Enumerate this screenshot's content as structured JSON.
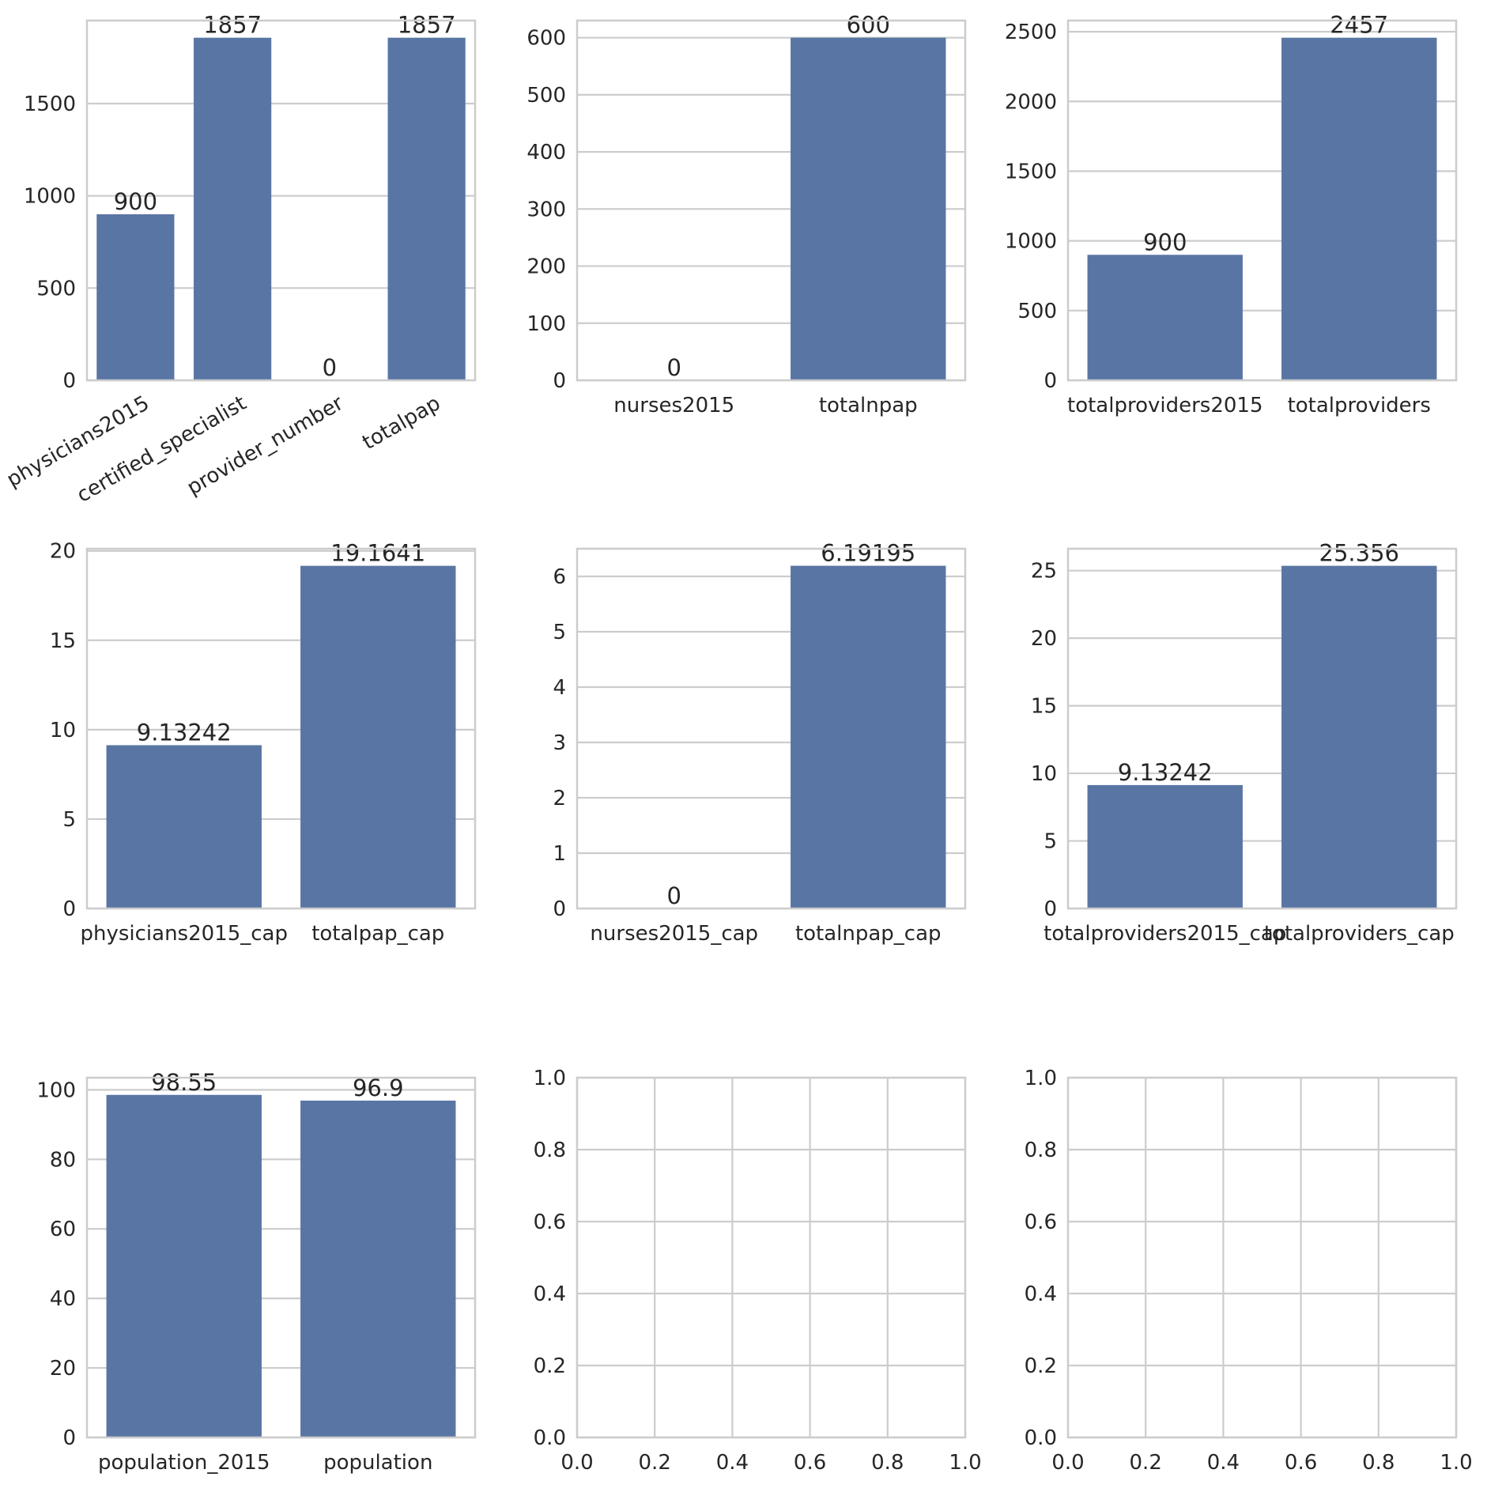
{
  "colors": {
    "bar": "#5975a4",
    "grid": "#cccccc",
    "text": "#262626"
  },
  "chart_data": [
    {
      "type": "bar",
      "categories": [
        "physicians2015",
        "certified_specialist",
        "provider_number",
        "totalpap"
      ],
      "values": [
        900,
        1857,
        0,
        1857
      ],
      "value_labels": [
        "900",
        "1857",
        "0",
        "1857"
      ],
      "ylim": [
        0,
        1950
      ],
      "yticks": [
        0,
        500,
        1000,
        1500
      ],
      "ytick_labels": [
        "0",
        "500",
        "1000",
        "1500"
      ],
      "xtick_rotation": 30,
      "grid": true
    },
    {
      "type": "bar",
      "categories": [
        "nurses2015",
        "totalnpap"
      ],
      "values": [
        0,
        600
      ],
      "value_labels": [
        "0",
        "600"
      ],
      "ylim": [
        0,
        630
      ],
      "yticks": [
        0,
        100,
        200,
        300,
        400,
        500,
        600
      ],
      "ytick_labels": [
        "0",
        "100",
        "200",
        "300",
        "400",
        "500",
        "600"
      ],
      "grid": true
    },
    {
      "type": "bar",
      "categories": [
        "totalproviders2015",
        "totalproviders"
      ],
      "values": [
        900,
        2457
      ],
      "value_labels": [
        "900",
        "2457"
      ],
      "ylim": [
        0,
        2580
      ],
      "yticks": [
        0,
        500,
        1000,
        1500,
        2000,
        2500
      ],
      "ytick_labels": [
        "0",
        "500",
        "1000",
        "1500",
        "2000",
        "2500"
      ],
      "grid": true
    },
    {
      "type": "bar",
      "categories": [
        "physicians2015_cap",
        "totalpap_cap"
      ],
      "values": [
        9.13242,
        19.1641
      ],
      "value_labels": [
        "9.13242",
        "19.1641"
      ],
      "ylim": [
        0,
        20.12
      ],
      "yticks": [
        0,
        5,
        10,
        15,
        20
      ],
      "ytick_labels": [
        "0",
        "5",
        "10",
        "15",
        "20"
      ],
      "grid": true
    },
    {
      "type": "bar",
      "categories": [
        "nurses2015_cap",
        "totalnpap_cap"
      ],
      "values": [
        0,
        6.19195
      ],
      "value_labels": [
        "0",
        "6.19195"
      ],
      "ylim": [
        0,
        6.5
      ],
      "yticks": [
        0,
        1,
        2,
        3,
        4,
        5,
        6
      ],
      "ytick_labels": [
        "0",
        "1",
        "2",
        "3",
        "4",
        "5",
        "6"
      ],
      "grid": true
    },
    {
      "type": "bar",
      "categories": [
        "totalproviders2015_cap",
        "totalproviders_cap"
      ],
      "values": [
        9.13242,
        25.356
      ],
      "value_labels": [
        "9.13242",
        "25.356"
      ],
      "ylim": [
        0,
        26.62
      ],
      "yticks": [
        0,
        5,
        10,
        15,
        20,
        25
      ],
      "ytick_labels": [
        "0",
        "5",
        "10",
        "15",
        "20",
        "25"
      ],
      "grid": true
    },
    {
      "type": "bar",
      "categories": [
        "population_2015",
        "population"
      ],
      "values": [
        98.55,
        96.9
      ],
      "value_labels": [
        "98.55",
        "96.9"
      ],
      "ylim": [
        0,
        103.5
      ],
      "yticks": [
        0,
        20,
        40,
        60,
        80,
        100
      ],
      "ytick_labels": [
        "0",
        "20",
        "40",
        "60",
        "80",
        "100"
      ],
      "grid": true
    },
    {
      "type": "empty",
      "xlim": [
        0,
        1
      ],
      "ylim": [
        0,
        1
      ],
      "xticks": [
        0,
        0.2,
        0.4,
        0.6,
        0.8,
        1.0
      ],
      "yticks": [
        0,
        0.2,
        0.4,
        0.6,
        0.8,
        1.0
      ],
      "xtick_labels": [
        "0.0",
        "0.2",
        "0.4",
        "0.6",
        "0.8",
        "1.0"
      ],
      "ytick_labels": [
        "0.0",
        "0.2",
        "0.4",
        "0.6",
        "0.8",
        "1.0"
      ],
      "grid": true
    },
    {
      "type": "empty",
      "xlim": [
        0,
        1
      ],
      "ylim": [
        0,
        1
      ],
      "xticks": [
        0,
        0.2,
        0.4,
        0.6,
        0.8,
        1.0
      ],
      "yticks": [
        0,
        0.2,
        0.4,
        0.6,
        0.8,
        1.0
      ],
      "xtick_labels": [
        "0.0",
        "0.2",
        "0.4",
        "0.6",
        "0.8",
        "1.0"
      ],
      "ytick_labels": [
        "0.0",
        "0.2",
        "0.4",
        "0.6",
        "0.8",
        "1.0"
      ],
      "grid": true
    }
  ]
}
